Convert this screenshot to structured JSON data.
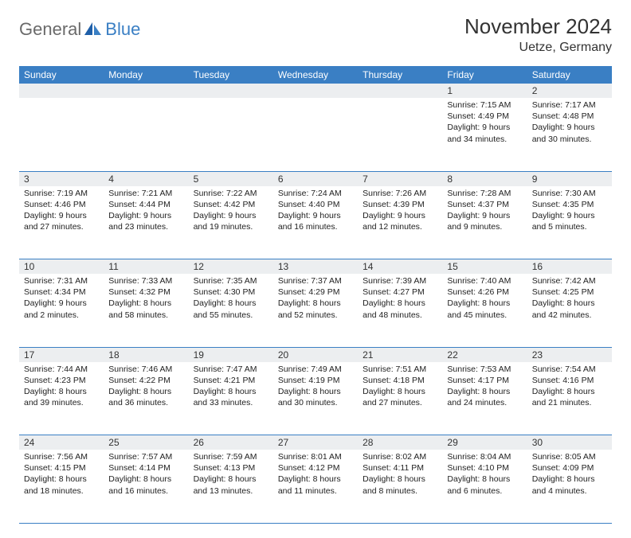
{
  "brand": {
    "general": "General",
    "blue": "Blue"
  },
  "header": {
    "month_title": "November 2024",
    "location": "Uetze, Germany",
    "title_fontsize": 26,
    "location_fontsize": 16
  },
  "colors": {
    "accent": "#3a7fc4",
    "header_bg": "#3a7fc4",
    "header_text": "#ffffff",
    "daynum_bg": "#eceef0",
    "cell_border": "#3a7fc4",
    "text": "#222222",
    "logo_gray": "#6a6a6a"
  },
  "days_of_week": [
    "Sunday",
    "Monday",
    "Tuesday",
    "Wednesday",
    "Thursday",
    "Friday",
    "Saturday"
  ],
  "weeks": [
    [
      null,
      null,
      null,
      null,
      null,
      {
        "n": "1",
        "sr": "Sunrise: 7:15 AM",
        "ss": "Sunset: 4:49 PM",
        "d1": "Daylight: 9 hours",
        "d2": "and 34 minutes."
      },
      {
        "n": "2",
        "sr": "Sunrise: 7:17 AM",
        "ss": "Sunset: 4:48 PM",
        "d1": "Daylight: 9 hours",
        "d2": "and 30 minutes."
      }
    ],
    [
      {
        "n": "3",
        "sr": "Sunrise: 7:19 AM",
        "ss": "Sunset: 4:46 PM",
        "d1": "Daylight: 9 hours",
        "d2": "and 27 minutes."
      },
      {
        "n": "4",
        "sr": "Sunrise: 7:21 AM",
        "ss": "Sunset: 4:44 PM",
        "d1": "Daylight: 9 hours",
        "d2": "and 23 minutes."
      },
      {
        "n": "5",
        "sr": "Sunrise: 7:22 AM",
        "ss": "Sunset: 4:42 PM",
        "d1": "Daylight: 9 hours",
        "d2": "and 19 minutes."
      },
      {
        "n": "6",
        "sr": "Sunrise: 7:24 AM",
        "ss": "Sunset: 4:40 PM",
        "d1": "Daylight: 9 hours",
        "d2": "and 16 minutes."
      },
      {
        "n": "7",
        "sr": "Sunrise: 7:26 AM",
        "ss": "Sunset: 4:39 PM",
        "d1": "Daylight: 9 hours",
        "d2": "and 12 minutes."
      },
      {
        "n": "8",
        "sr": "Sunrise: 7:28 AM",
        "ss": "Sunset: 4:37 PM",
        "d1": "Daylight: 9 hours",
        "d2": "and 9 minutes."
      },
      {
        "n": "9",
        "sr": "Sunrise: 7:30 AM",
        "ss": "Sunset: 4:35 PM",
        "d1": "Daylight: 9 hours",
        "d2": "and 5 minutes."
      }
    ],
    [
      {
        "n": "10",
        "sr": "Sunrise: 7:31 AM",
        "ss": "Sunset: 4:34 PM",
        "d1": "Daylight: 9 hours",
        "d2": "and 2 minutes."
      },
      {
        "n": "11",
        "sr": "Sunrise: 7:33 AM",
        "ss": "Sunset: 4:32 PM",
        "d1": "Daylight: 8 hours",
        "d2": "and 58 minutes."
      },
      {
        "n": "12",
        "sr": "Sunrise: 7:35 AM",
        "ss": "Sunset: 4:30 PM",
        "d1": "Daylight: 8 hours",
        "d2": "and 55 minutes."
      },
      {
        "n": "13",
        "sr": "Sunrise: 7:37 AM",
        "ss": "Sunset: 4:29 PM",
        "d1": "Daylight: 8 hours",
        "d2": "and 52 minutes."
      },
      {
        "n": "14",
        "sr": "Sunrise: 7:39 AM",
        "ss": "Sunset: 4:27 PM",
        "d1": "Daylight: 8 hours",
        "d2": "and 48 minutes."
      },
      {
        "n": "15",
        "sr": "Sunrise: 7:40 AM",
        "ss": "Sunset: 4:26 PM",
        "d1": "Daylight: 8 hours",
        "d2": "and 45 minutes."
      },
      {
        "n": "16",
        "sr": "Sunrise: 7:42 AM",
        "ss": "Sunset: 4:25 PM",
        "d1": "Daylight: 8 hours",
        "d2": "and 42 minutes."
      }
    ],
    [
      {
        "n": "17",
        "sr": "Sunrise: 7:44 AM",
        "ss": "Sunset: 4:23 PM",
        "d1": "Daylight: 8 hours",
        "d2": "and 39 minutes."
      },
      {
        "n": "18",
        "sr": "Sunrise: 7:46 AM",
        "ss": "Sunset: 4:22 PM",
        "d1": "Daylight: 8 hours",
        "d2": "and 36 minutes."
      },
      {
        "n": "19",
        "sr": "Sunrise: 7:47 AM",
        "ss": "Sunset: 4:21 PM",
        "d1": "Daylight: 8 hours",
        "d2": "and 33 minutes."
      },
      {
        "n": "20",
        "sr": "Sunrise: 7:49 AM",
        "ss": "Sunset: 4:19 PM",
        "d1": "Daylight: 8 hours",
        "d2": "and 30 minutes."
      },
      {
        "n": "21",
        "sr": "Sunrise: 7:51 AM",
        "ss": "Sunset: 4:18 PM",
        "d1": "Daylight: 8 hours",
        "d2": "and 27 minutes."
      },
      {
        "n": "22",
        "sr": "Sunrise: 7:53 AM",
        "ss": "Sunset: 4:17 PM",
        "d1": "Daylight: 8 hours",
        "d2": "and 24 minutes."
      },
      {
        "n": "23",
        "sr": "Sunrise: 7:54 AM",
        "ss": "Sunset: 4:16 PM",
        "d1": "Daylight: 8 hours",
        "d2": "and 21 minutes."
      }
    ],
    [
      {
        "n": "24",
        "sr": "Sunrise: 7:56 AM",
        "ss": "Sunset: 4:15 PM",
        "d1": "Daylight: 8 hours",
        "d2": "and 18 minutes."
      },
      {
        "n": "25",
        "sr": "Sunrise: 7:57 AM",
        "ss": "Sunset: 4:14 PM",
        "d1": "Daylight: 8 hours",
        "d2": "and 16 minutes."
      },
      {
        "n": "26",
        "sr": "Sunrise: 7:59 AM",
        "ss": "Sunset: 4:13 PM",
        "d1": "Daylight: 8 hours",
        "d2": "and 13 minutes."
      },
      {
        "n": "27",
        "sr": "Sunrise: 8:01 AM",
        "ss": "Sunset: 4:12 PM",
        "d1": "Daylight: 8 hours",
        "d2": "and 11 minutes."
      },
      {
        "n": "28",
        "sr": "Sunrise: 8:02 AM",
        "ss": "Sunset: 4:11 PM",
        "d1": "Daylight: 8 hours",
        "d2": "and 8 minutes."
      },
      {
        "n": "29",
        "sr": "Sunrise: 8:04 AM",
        "ss": "Sunset: 4:10 PM",
        "d1": "Daylight: 8 hours",
        "d2": "and 6 minutes."
      },
      {
        "n": "30",
        "sr": "Sunrise: 8:05 AM",
        "ss": "Sunset: 4:09 PM",
        "d1": "Daylight: 8 hours",
        "d2": "and 4 minutes."
      }
    ]
  ]
}
